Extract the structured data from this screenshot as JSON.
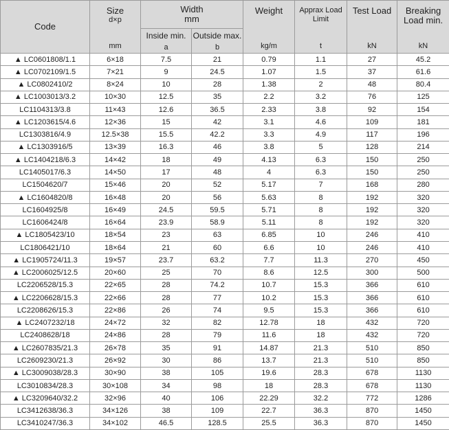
{
  "header": {
    "code": "Code",
    "size": {
      "title": "Size",
      "sub": "d×p",
      "unit": "mm"
    },
    "width": {
      "title": "Width",
      "unit": "mm",
      "inside": {
        "label": "Inside min.",
        "unit": "a"
      },
      "outside": {
        "label": "Outside max.",
        "unit": "b"
      }
    },
    "weight": {
      "title": "Weight",
      "unit": "kg/m"
    },
    "load_limit": {
      "title": "Appraх Load Limit",
      "unit": "t"
    },
    "test_load": {
      "title": "Test Load",
      "unit": "kN"
    },
    "breaking_load": {
      "title": "Breaking Load min.",
      "unit": "kN"
    }
  },
  "table": {
    "rows": [
      [
        "▲ LC0601808/1.1",
        "6×18",
        "7.5",
        "21",
        "0.79",
        "1.1",
        "27",
        "45.2"
      ],
      [
        "▲ LC0702109/1.5",
        "7×21",
        "9",
        "24.5",
        "1.07",
        "1.5",
        "37",
        "61.6"
      ],
      [
        "▲ LC0802410/2",
        "8×24",
        "10",
        "28",
        "1.38",
        "2",
        "48",
        "80.4"
      ],
      [
        "▲ LC1003013/3.2",
        "10×30",
        "12.5",
        "35",
        "2.2",
        "3.2",
        "76",
        "125"
      ],
      [
        "LC1104313/3.8",
        "11×43",
        "12.6",
        "36.5",
        "2.33",
        "3.8",
        "92",
        "154"
      ],
      [
        "▲ LC1203615/4.6",
        "12×36",
        "15",
        "42",
        "3.1",
        "4.6",
        "109",
        "181"
      ],
      [
        "LC1303816/4.9",
        "12.5×38",
        "15.5",
        "42.2",
        "3.3",
        "4.9",
        "117",
        "196"
      ],
      [
        "▲ LC1303916/5",
        "13×39",
        "16.3",
        "46",
        "3.8",
        "5",
        "128",
        "214"
      ],
      [
        "▲ LC1404218/6.3",
        "14×42",
        "18",
        "49",
        "4.13",
        "6.3",
        "150",
        "250"
      ],
      [
        "LC1405017/6.3",
        "14×50",
        "17",
        "48",
        "4",
        "6.3",
        "150",
        "250"
      ],
      [
        "LC1504620/7",
        "15×46",
        "20",
        "52",
        "5.17",
        "7",
        "168",
        "280"
      ],
      [
        "▲ LC1604820/8",
        "16×48",
        "20",
        "56",
        "5.63",
        "8",
        "192",
        "320"
      ],
      [
        "LC1604925/8",
        "16×49",
        "24.5",
        "59.5",
        "5.71",
        "8",
        "192",
        "320"
      ],
      [
        "LC1606424/8",
        "16×64",
        "23.9",
        "58.9",
        "5.11",
        "8",
        "192",
        "320"
      ],
      [
        "▲ LC1805423/10",
        "18×54",
        "23",
        "63",
        "6.85",
        "10",
        "246",
        "410"
      ],
      [
        "LC1806421/10",
        "18×64",
        "21",
        "60",
        "6.6",
        "10",
        "246",
        "410"
      ],
      [
        "▲ LC1905724/11.3",
        "19×57",
        "23.7",
        "63.2",
        "7.7",
        "11.3",
        "270",
        "450"
      ],
      [
        "▲ LC2006025/12.5",
        "20×60",
        "25",
        "70",
        "8.6",
        "12.5",
        "300",
        "500"
      ],
      [
        "LC2206528/15.3",
        "22×65",
        "28",
        "74.2",
        "10.7",
        "15.3",
        "366",
        "610"
      ],
      [
        "▲ LC2206628/15.3",
        "22×66",
        "28",
        "77",
        "10.2",
        "15.3",
        "366",
        "610"
      ],
      [
        "LC2208626/15.3",
        "22×86",
        "26",
        "74",
        "9.5",
        "15.3",
        "366",
        "610"
      ],
      [
        "▲ LC2407232/18",
        "24×72",
        "32",
        "82",
        "12.78",
        "18",
        "432",
        "720"
      ],
      [
        "LC2408628/18",
        "24×86",
        "28",
        "79",
        "11.6",
        "18",
        "432",
        "720"
      ],
      [
        "▲ LC2607835/21.3",
        "26×78",
        "35",
        "91",
        "14.87",
        "21.3",
        "510",
        "850"
      ],
      [
        "LC2609230/21.3",
        "26×92",
        "30",
        "86",
        "13.7",
        "21.3",
        "510",
        "850"
      ],
      [
        "▲ LC3009038/28.3",
        "30×90",
        "38",
        "105",
        "19.6",
        "28.3",
        "678",
        "1130"
      ],
      [
        "LC3010834/28.3",
        "30×108",
        "34",
        "98",
        "18",
        "28.3",
        "678",
        "1130"
      ],
      [
        "▲ LC3209640/32.2",
        "32×96",
        "40",
        "106",
        "22.29",
        "32.2",
        "772",
        "1286"
      ],
      [
        "LC3412638/36.3",
        "34×126",
        "38",
        "109",
        "22.7",
        "36.3",
        "870",
        "1450"
      ],
      [
        "LC3410247/36.3",
        "34×102",
        "46.5",
        "128.5",
        "25.5",
        "36.3",
        "870",
        "1450"
      ]
    ]
  }
}
